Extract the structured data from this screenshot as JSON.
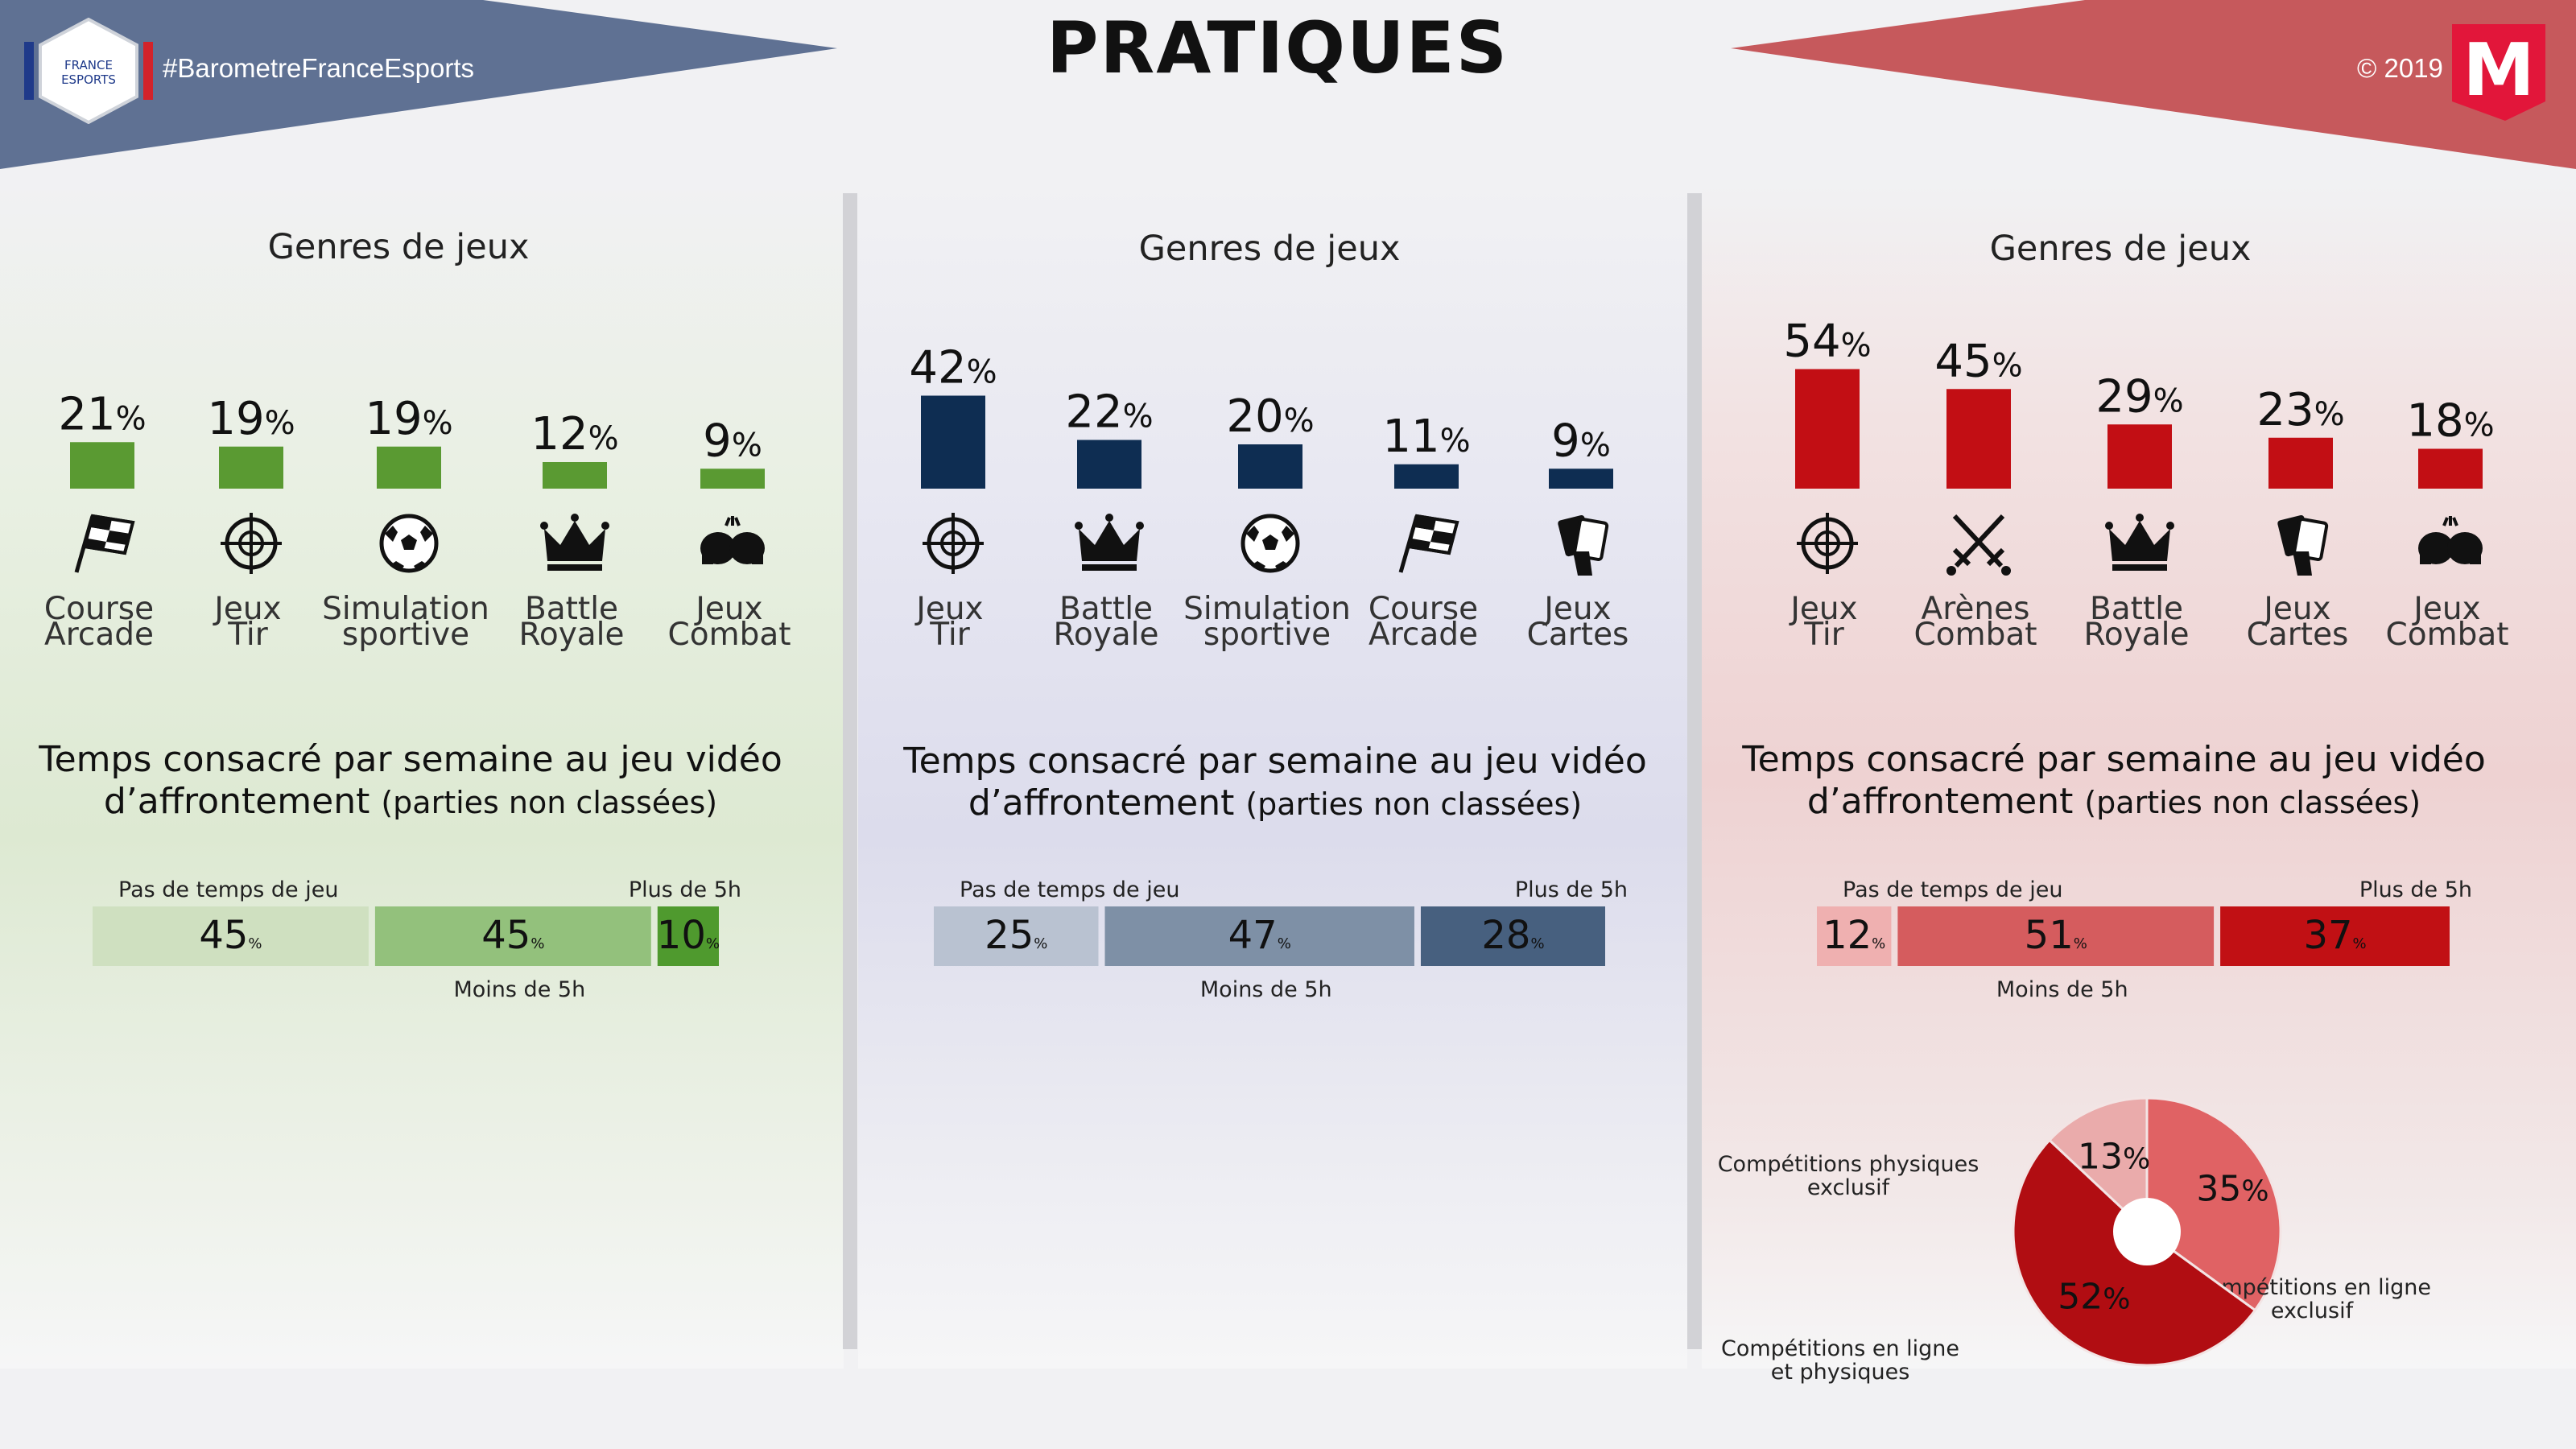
{
  "header": {
    "title": "PRATIQUES",
    "hashtag": "#BarometreFranceEsports",
    "copyright": "© 2019",
    "logo_left_lines": [
      "FRANCE",
      "ESPORTS"
    ],
    "logo_right_letter": "M"
  },
  "colors": {
    "green": "#5a9a32",
    "navy": "#0e2d52",
    "red": "#c20e14",
    "banner_blue": "#5f7193",
    "banner_red": "#c6595c"
  },
  "columns": [
    {
      "genres_title": "Genres de jeux",
      "time_title_line1": "Temps consacré par semaine au jeu vidéo",
      "time_title_line2_main": "d’affrontement",
      "time_title_line2_small": "(parties non classées)",
      "time_labels": {
        "none": "Pas de temps de jeu",
        "less": "Moins de 5h",
        "more": "Plus de 5h"
      }
    },
    {
      "genres_title": "Genres de jeux",
      "time_title_line1": "Temps consacré par semaine au jeu vidéo",
      "time_title_line2_main": "d’affrontement",
      "time_title_line2_small": "(parties non classées)",
      "time_labels": {
        "none": "Pas de temps de jeu",
        "less": "Moins de 5h",
        "more": "Plus de 5h"
      }
    },
    {
      "genres_title": "Genres de jeux",
      "time_title_line1": "Temps consacré par semaine au jeu vidéo",
      "time_title_line2_main": "d’affrontement",
      "time_title_line2_small": "(parties non classées)",
      "time_labels": {
        "none": "Pas de temps de jeu",
        "less": "Moins de 5h",
        "more": "Plus de 5h"
      }
    }
  ],
  "chart_data": [
    {
      "type": "bar",
      "title": "Genres de jeux",
      "categories": [
        "Course Arcade",
        "Jeux Tir",
        "Simulation sportive",
        "Battle Royale",
        "Jeux Combat"
      ],
      "category_lines": [
        [
          "Course",
          "Arcade"
        ],
        [
          "Jeux",
          "Tir"
        ],
        [
          "Simulation",
          "sportive"
        ],
        [
          "Battle",
          "Royale"
        ],
        [
          "Jeux",
          "Combat"
        ]
      ],
      "icons": [
        "checkered-flag-icon",
        "crosshair-icon",
        "soccer-ball-icon",
        "crown-icon",
        "boxing-gloves-icon"
      ],
      "values": [
        21,
        19,
        19,
        12,
        9
      ],
      "unit": "%",
      "color": "#5a9a32"
    },
    {
      "type": "bar",
      "title": "Genres de jeux",
      "categories": [
        "Jeux Tir",
        "Battle Royale",
        "Simulation sportive",
        "Course Arcade",
        "Jeux Cartes"
      ],
      "category_lines": [
        [
          "Jeux",
          "Tir"
        ],
        [
          "Battle",
          "Royale"
        ],
        [
          "Simulation",
          "sportive"
        ],
        [
          "Course",
          "Arcade"
        ],
        [
          "Jeux",
          "Cartes"
        ]
      ],
      "icons": [
        "crosshair-icon",
        "crown-icon",
        "soccer-ball-icon",
        "checkered-flag-icon",
        "playing-cards-icon"
      ],
      "values": [
        42,
        22,
        20,
        11,
        9
      ],
      "unit": "%",
      "color": "#0e2d52"
    },
    {
      "type": "bar",
      "title": "Genres de jeux",
      "categories": [
        "Jeux Tir",
        "Arènes Combat",
        "Battle Royale",
        "Jeux Cartes",
        "Jeux Combat"
      ],
      "category_lines": [
        [
          "Jeux",
          "Tir"
        ],
        [
          "Arènes",
          "Combat"
        ],
        [
          "Battle",
          "Royale"
        ],
        [
          "Jeux",
          "Cartes"
        ],
        [
          "Jeux",
          "Combat"
        ]
      ],
      "icons": [
        "crosshair-icon",
        "crossed-swords-icon",
        "crown-icon",
        "playing-cards-icon",
        "boxing-gloves-icon"
      ],
      "values": [
        54,
        45,
        29,
        23,
        18
      ],
      "unit": "%",
      "color": "#c20e14"
    },
    {
      "type": "bar",
      "stacked": true,
      "orientation": "horizontal",
      "title": "Temps consacré par semaine au jeu vidéo d’affrontement (parties non classées)",
      "series": [
        {
          "name": "Pas de temps de jeu",
          "values": [
            45
          ],
          "color": "#cfe0c0"
        },
        {
          "name": "Moins de 5h",
          "values": [
            45
          ],
          "color": "#93c17c"
        },
        {
          "name": "Plus de 5h",
          "values": [
            10
          ],
          "color": "#4f9a2e"
        }
      ],
      "unit": "%"
    },
    {
      "type": "bar",
      "stacked": true,
      "orientation": "horizontal",
      "title": "Temps consacré par semaine au jeu vidéo d’affrontement (parties non classées)",
      "series": [
        {
          "name": "Pas de temps de jeu",
          "values": [
            25
          ],
          "color": "#b9c2d1"
        },
        {
          "name": "Moins de 5h",
          "values": [
            47
          ],
          "color": "#7e90a6"
        },
        {
          "name": "Plus de 5h",
          "values": [
            28
          ],
          "color": "#47607f"
        }
      ],
      "unit": "%"
    },
    {
      "type": "bar",
      "stacked": true,
      "orientation": "horizontal",
      "title": "Temps consacré par semaine au jeu vidéo d’affrontement (parties non classées)",
      "series": [
        {
          "name": "Pas de temps de jeu",
          "values": [
            12
          ],
          "color": "#efb0b0"
        },
        {
          "name": "Moins de 5h",
          "values": [
            51
          ],
          "color": "#d55c5e"
        },
        {
          "name": "Plus de 5h",
          "values": [
            37
          ],
          "color": "#c11014"
        }
      ],
      "unit": "%"
    },
    {
      "type": "pie",
      "donut": true,
      "slices": [
        {
          "label": "Compétitions en ligne exclusif",
          "label_lines": [
            "Compétitions en ligne",
            "exclusif"
          ],
          "value": 35,
          "color": "#e06264"
        },
        {
          "label": "Compétitions en ligne et physiques",
          "label_lines": [
            "Compétitions en ligne",
            "et physiques"
          ],
          "value": 52,
          "color": "#b10d12"
        },
        {
          "label": "Compétitions physiques exclusif",
          "label_lines": [
            "Compétitions physiques",
            "exclusif"
          ],
          "value": 13,
          "color": "#eaabab"
        }
      ],
      "unit": "%"
    }
  ]
}
